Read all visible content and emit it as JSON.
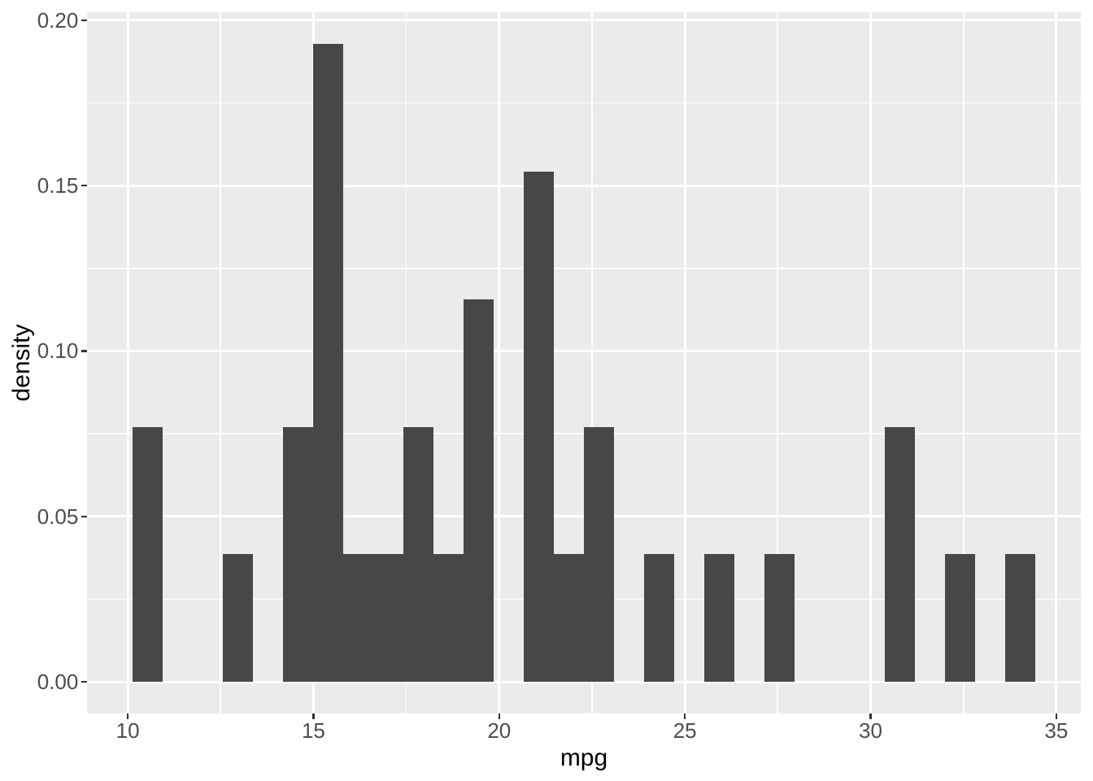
{
  "chart_data": {
    "type": "bar",
    "subtype": "histogram-density",
    "title": "",
    "xlabel": "mpg",
    "ylabel": "density",
    "x_tick_labels": [
      "10",
      "15",
      "20",
      "25",
      "30",
      "35"
    ],
    "x_tick_values": [
      10,
      15,
      20,
      25,
      30,
      35
    ],
    "x_minor_values": [
      12.5,
      17.5,
      22.5,
      27.5,
      32.5
    ],
    "y_tick_labels": [
      "0.00",
      "0.05",
      "0.10",
      "0.15",
      "0.20"
    ],
    "y_tick_values": [
      0,
      0.05,
      0.1,
      0.15,
      0.2
    ],
    "y_minor_values": [
      0.025,
      0.075,
      0.125,
      0.175
    ],
    "xlim": [
      8.91,
      35.666
    ],
    "ylim": [
      -0.009648,
      0.202455
    ],
    "binwidth": 0.8103,
    "grid": "on",
    "legend_position": "none",
    "bins": [
      {
        "x0": 10.129,
        "x1": 10.94,
        "count": 2,
        "density": 0.0771
      },
      {
        "x0": 12.56,
        "x1": 13.371,
        "count": 1,
        "density": 0.0386
      },
      {
        "x0": 14.181,
        "x1": 14.991,
        "count": 2,
        "density": 0.0771
      },
      {
        "x0": 14.991,
        "x1": 15.802,
        "count": 5,
        "density": 0.1929
      },
      {
        "x0": 15.802,
        "x1": 16.612,
        "count": 1,
        "density": 0.0386
      },
      {
        "x0": 16.612,
        "x1": 17.422,
        "count": 1,
        "density": 0.0386
      },
      {
        "x0": 17.422,
        "x1": 18.233,
        "count": 2,
        "density": 0.0771
      },
      {
        "x0": 18.233,
        "x1": 19.043,
        "count": 1,
        "density": 0.0386
      },
      {
        "x0": 19.043,
        "x1": 19.853,
        "count": 3,
        "density": 0.1157
      },
      {
        "x0": 20.664,
        "x1": 21.474,
        "count": 4,
        "density": 0.1543
      },
      {
        "x0": 21.474,
        "x1": 22.284,
        "count": 1,
        "density": 0.0386
      },
      {
        "x0": 22.284,
        "x1": 23.095,
        "count": 2,
        "density": 0.0771
      },
      {
        "x0": 23.905,
        "x1": 24.716,
        "count": 1,
        "density": 0.0386
      },
      {
        "x0": 25.526,
        "x1": 26.336,
        "count": 1,
        "density": 0.0386
      },
      {
        "x0": 27.147,
        "x1": 27.957,
        "count": 1,
        "density": 0.0386
      },
      {
        "x0": 30.388,
        "x1": 31.198,
        "count": 2,
        "density": 0.0771
      },
      {
        "x0": 32.009,
        "x1": 32.819,
        "count": 1,
        "density": 0.0386
      },
      {
        "x0": 33.629,
        "x1": 34.44,
        "count": 1,
        "density": 0.0386
      }
    ],
    "colors": {
      "bar_fill": "#474747",
      "panel_bg": "#EBEBEB",
      "grid": "#FFFFFF",
      "axis_text": "#4D4D4D",
      "tick_mark": "#333333",
      "axis_title": "#000000",
      "page_bg": "#FFFFFF"
    }
  }
}
